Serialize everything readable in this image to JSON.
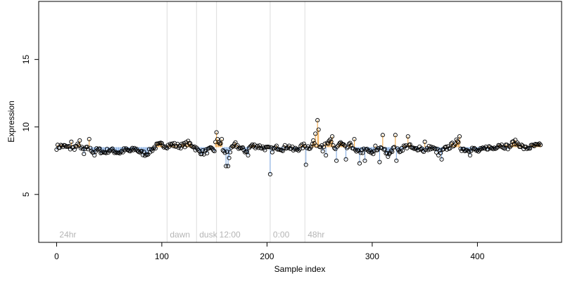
{
  "chart_data": {
    "type": "scatter",
    "xlabel": "Sample index",
    "ylabel": "Expression",
    "xlim": [
      -17,
      480
    ],
    "ylim": [
      1.45,
      19.3
    ],
    "x_ticks": [
      0,
      100,
      200,
      300,
      400
    ],
    "y_ticks": [
      5,
      10,
      15
    ],
    "baseline": 8.5,
    "colors": {
      "above": "#f2a23a",
      "below": "#7aa6e0",
      "guide": "#dcdcdc",
      "point_stroke": "#000000",
      "phase_label": "#b5b5b5"
    },
    "phase_markers": [
      {
        "label": "24hr",
        "x": 0
      },
      {
        "label": "dawn",
        "x": 105
      },
      {
        "label": "dusk",
        "x": 133
      },
      {
        "label": "12:00",
        "x": 152
      },
      {
        "label": "0:00",
        "x": 203
      },
      {
        "label": "48hr",
        "x": 236
      }
    ],
    "anchors": [
      [
        0,
        8.5
      ],
      [
        5,
        8.6
      ],
      [
        10,
        8.5
      ],
      [
        15,
        8.4
      ],
      [
        20,
        8.6
      ],
      [
        25,
        8.3
      ],
      [
        30,
        8.4
      ],
      [
        35,
        8.2
      ],
      [
        40,
        8.3
      ],
      [
        45,
        8.1
      ],
      [
        50,
        8.3
      ],
      [
        55,
        8.2
      ],
      [
        60,
        8.1
      ],
      [
        65,
        8.3
      ],
      [
        70,
        8.2
      ],
      [
        75,
        8.4
      ],
      [
        80,
        8.1
      ],
      [
        85,
        8.0
      ],
      [
        90,
        8.3
      ],
      [
        95,
        8.6
      ],
      [
        100,
        8.7
      ],
      [
        105,
        8.6
      ],
      [
        110,
        8.7
      ],
      [
        115,
        8.6
      ],
      [
        120,
        8.6
      ],
      [
        125,
        8.8
      ],
      [
        130,
        8.6
      ],
      [
        135,
        8.2
      ],
      [
        140,
        8.1
      ],
      [
        145,
        8.3
      ],
      [
        150,
        8.3
      ],
      [
        152,
        9.3
      ],
      [
        155,
        8.8
      ],
      [
        160,
        8.0
      ],
      [
        165,
        8.2
      ],
      [
        170,
        8.7
      ],
      [
        175,
        8.4
      ],
      [
        180,
        8.2
      ],
      [
        185,
        8.6
      ],
      [
        190,
        8.6
      ],
      [
        195,
        8.5
      ],
      [
        200,
        8.4
      ],
      [
        205,
        8.3
      ],
      [
        210,
        8.5
      ],
      [
        215,
        8.4
      ],
      [
        220,
        8.6
      ],
      [
        225,
        8.3
      ],
      [
        230,
        8.4
      ],
      [
        235,
        8.6
      ],
      [
        240,
        8.5
      ],
      [
        245,
        8.8
      ],
      [
        250,
        8.7
      ],
      [
        255,
        8.6
      ],
      [
        260,
        8.9
      ],
      [
        265,
        8.4
      ],
      [
        270,
        8.8
      ],
      [
        275,
        8.4
      ],
      [
        280,
        8.7
      ],
      [
        285,
        8.1
      ],
      [
        290,
        8.2
      ],
      [
        295,
        8.3
      ],
      [
        300,
        8.0
      ],
      [
        305,
        8.4
      ],
      [
        310,
        8.3
      ],
      [
        315,
        8.1
      ],
      [
        320,
        8.4
      ],
      [
        325,
        8.2
      ],
      [
        330,
        8.5
      ],
      [
        335,
        8.6
      ],
      [
        340,
        8.3
      ],
      [
        345,
        8.5
      ],
      [
        350,
        8.2
      ],
      [
        355,
        8.5
      ],
      [
        360,
        8.3
      ],
      [
        365,
        8.1
      ],
      [
        370,
        8.4
      ],
      [
        375,
        8.6
      ],
      [
        380,
        8.9
      ],
      [
        385,
        8.4
      ],
      [
        390,
        8.3
      ],
      [
        395,
        8.4
      ],
      [
        400,
        8.2
      ],
      [
        405,
        8.3
      ],
      [
        410,
        8.5
      ],
      [
        415,
        8.4
      ],
      [
        420,
        8.7
      ],
      [
        425,
        8.6
      ],
      [
        430,
        8.5
      ],
      [
        435,
        8.9
      ],
      [
        440,
        8.7
      ],
      [
        445,
        8.4
      ],
      [
        450,
        8.5
      ],
      [
        455,
        8.6
      ],
      [
        460,
        8.6
      ]
    ],
    "outliers": [
      [
        14,
        8.9
      ],
      [
        22,
        9.0
      ],
      [
        26,
        8.0
      ],
      [
        31,
        9.1
      ],
      [
        36,
        7.9
      ],
      [
        152,
        9.6
      ],
      [
        157,
        9.1
      ],
      [
        161,
        7.1
      ],
      [
        163,
        7.1
      ],
      [
        164,
        7.7
      ],
      [
        182,
        7.9
      ],
      [
        203,
        6.5
      ],
      [
        237,
        7.2
      ],
      [
        244,
        9.0
      ],
      [
        246,
        9.5
      ],
      [
        248,
        10.5
      ],
      [
        249,
        9.8
      ],
      [
        253,
        8.2
      ],
      [
        256,
        7.9
      ],
      [
        262,
        9.3
      ],
      [
        266,
        7.5
      ],
      [
        275,
        7.6
      ],
      [
        283,
        9.1
      ],
      [
        288,
        7.3
      ],
      [
        293,
        7.5
      ],
      [
        303,
        8.6
      ],
      [
        307,
        7.4
      ],
      [
        310,
        9.4
      ],
      [
        315,
        7.8
      ],
      [
        322,
        9.4
      ],
      [
        323,
        7.5
      ],
      [
        334,
        9.3
      ],
      [
        350,
        8.9
      ],
      [
        363,
        7.9
      ],
      [
        366,
        7.6
      ],
      [
        383,
        9.3
      ],
      [
        393,
        7.9
      ]
    ],
    "n_points": 461
  }
}
